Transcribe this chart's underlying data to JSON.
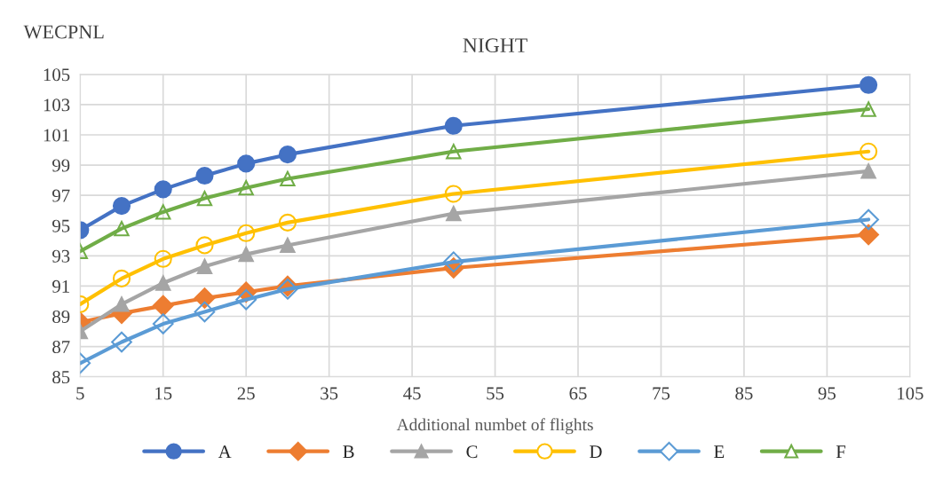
{
  "chart_data": {
    "type": "line",
    "title": "NIGHT",
    "xlabel": "Additional numbet of flights",
    "ylabel": "WECPNL",
    "x": [
      5,
      10,
      15,
      20,
      25,
      30,
      50,
      100
    ],
    "series": [
      {
        "name": "A",
        "color": "#4472c4",
        "marker": "circle",
        "values": [
          94.7,
          96.3,
          97.4,
          98.3,
          99.1,
          99.7,
          101.6,
          104.3
        ]
      },
      {
        "name": "B",
        "color": "#ed7d31",
        "marker": "diamond",
        "values": [
          88.6,
          89.2,
          89.7,
          90.2,
          90.6,
          91.0,
          92.2,
          94.4
        ]
      },
      {
        "name": "C",
        "color": "#a5a5a5",
        "marker": "triangle",
        "values": [
          88.0,
          89.8,
          91.2,
          92.3,
          93.1,
          93.7,
          95.8,
          98.6
        ]
      },
      {
        "name": "D",
        "color": "#ffc000",
        "marker": "circle",
        "values": [
          89.8,
          91.5,
          92.8,
          93.7,
          94.5,
          95.2,
          97.1,
          99.9
        ]
      },
      {
        "name": "E",
        "color": "#5b9bd5",
        "marker": "diamond",
        "values": [
          85.9,
          87.3,
          88.5,
          89.3,
          90.1,
          90.8,
          92.6,
          95.4
        ]
      },
      {
        "name": "F",
        "color": "#70ad47",
        "marker": "triangle",
        "values": [
          93.3,
          94.8,
          95.9,
          96.8,
          97.5,
          98.1,
          99.9,
          102.7
        ]
      }
    ],
    "xlim": [
      5,
      105
    ],
    "xticks": [
      5,
      15,
      25,
      35,
      45,
      55,
      65,
      75,
      85,
      95,
      105
    ],
    "ylim": [
      85,
      105
    ],
    "yticks": [
      85,
      87,
      89,
      91,
      93,
      95,
      97,
      99,
      101,
      103,
      105
    ],
    "grid": true,
    "legend": "bottom",
    "line_style": "solid"
  }
}
